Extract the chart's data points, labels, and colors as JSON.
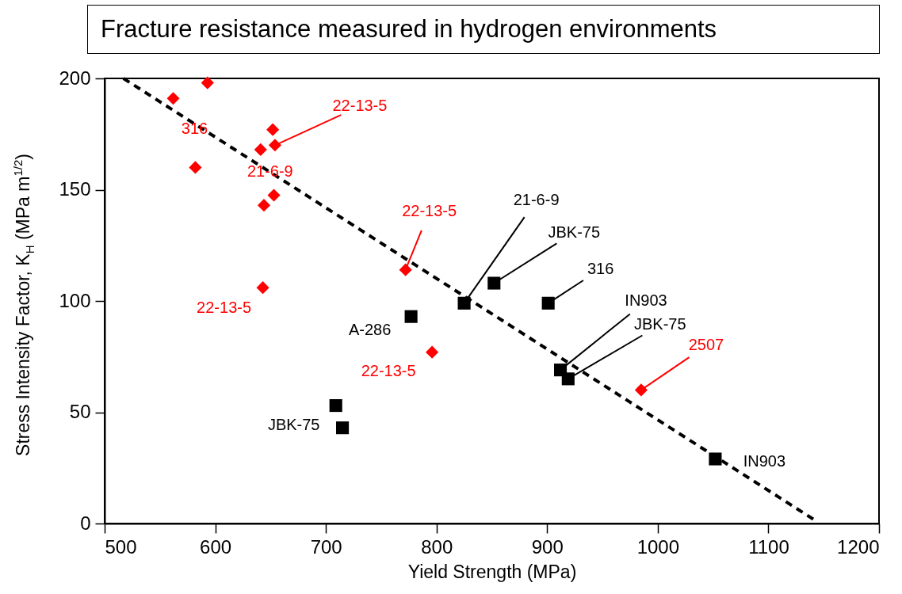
{
  "chart_data": {
    "type": "scatter",
    "title": "Fracture resistance measured in hydrogen environments",
    "xlabel": "Yield Strength (MPa)",
    "ylabel": "Stress Intensity Factor, K$_{H}$ (MPa m$^{1/2}$)",
    "xlim": [
      500,
      1200
    ],
    "xticks": [
      500,
      600,
      700,
      800,
      900,
      1000,
      1100,
      1200
    ],
    "ylim": [
      0,
      200
    ],
    "yticks": [
      0,
      50,
      100,
      150,
      200
    ],
    "grid": false,
    "series": [
      {
        "marker": "diamond",
        "color": "#ff0000",
        "x": [
          562,
          593,
          582,
          652,
          654,
          641,
          653,
          644,
          643,
          772,
          796,
          985
        ],
        "values": [
          191,
          198,
          160,
          177,
          170,
          168,
          147.5,
          143,
          106,
          114,
          77,
          60
        ]
      },
      {
        "marker": "square",
        "color": "#000000",
        "x": [
          825,
          852,
          901,
          777,
          912,
          919,
          709,
          715,
          1052
        ],
        "values": [
          99,
          108,
          99,
          93,
          69,
          65,
          53,
          43,
          29
        ]
      },
      {
        "type": "line",
        "marker": "none",
        "line_style": "dashed",
        "color": "#000000",
        "x": [
          517,
          1142
        ],
        "values": [
          200,
          1.5
        ]
      }
    ],
    "annotations": [
      {
        "text": "22-13-5",
        "x": 654,
        "y": 170
      },
      {
        "text": "316",
        "x": 562,
        "y": 191
      },
      {
        "text": "21-6-9",
        "x": 641,
        "y": 168
      },
      {
        "text": "22-13-5",
        "x": 643,
        "y": 106
      },
      {
        "text": "22-13-5",
        "x": 772,
        "y": 114
      },
      {
        "text": "22-13-5",
        "x": 796,
        "y": 77
      },
      {
        "text": "21-6-9",
        "x": 825,
        "y": 99
      },
      {
        "text": "JBK-75",
        "x": 852,
        "y": 108
      },
      {
        "text": "316",
        "x": 901,
        "y": 99
      },
      {
        "text": "IN903",
        "x": 912,
        "y": 69
      },
      {
        "text": "JBK-75",
        "x": 919,
        "y": 65
      },
      {
        "text": "2507",
        "x": 985,
        "y": 60
      },
      {
        "text": "A-286",
        "x": 777,
        "y": 93
      },
      {
        "text": "JBK-75",
        "x": 709,
        "y": 53
      },
      {
        "text": "IN903",
        "x": 1052,
        "y": 29
      }
    ]
  }
}
